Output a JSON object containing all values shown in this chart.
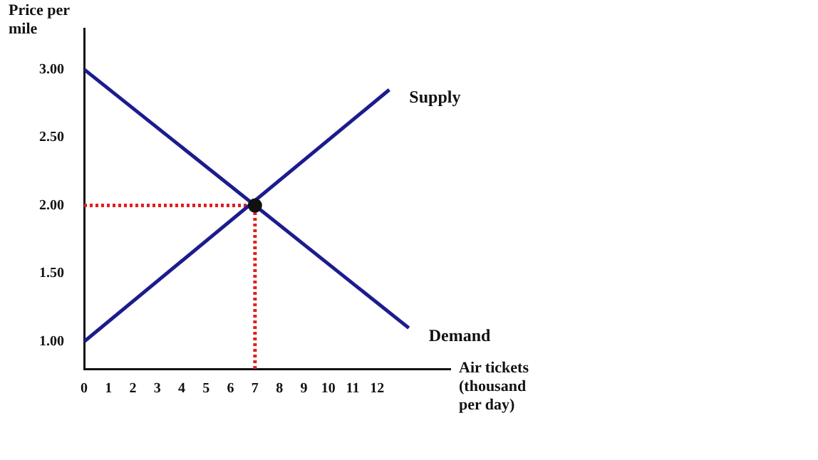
{
  "chart_data": {
    "type": "line",
    "xlabel": "Air tickets (thousand per day)",
    "ylabel": "Price per mile",
    "xlim": [
      0,
      15
    ],
    "xticks": [
      0,
      1,
      2,
      3,
      4,
      5,
      6,
      7,
      8,
      9,
      10,
      11,
      12
    ],
    "ylim": [
      0.8,
      3.3
    ],
    "yticks": [
      {
        "value": 1,
        "label": "1.00"
      },
      {
        "value": 1.5,
        "label": "1.50"
      },
      {
        "value": 2,
        "label": "2.00"
      },
      {
        "value": 2.5,
        "label": "2.50"
      },
      {
        "value": 3,
        "label": "3.00"
      }
    ],
    "grid": false,
    "legend": false,
    "series": [
      {
        "name": "Supply",
        "color": "#1c1c8e",
        "x": [
          0,
          12.5
        ],
        "values": [
          1.0,
          2.85
        ],
        "line_style": "solid"
      },
      {
        "name": "Demand",
        "color": "#1c1c8e",
        "x": [
          0,
          13.3
        ],
        "values": [
          3.0,
          1.1
        ],
        "line_style": "solid"
      },
      {
        "color": "#e02020",
        "x": [
          0,
          7
        ],
        "values": [
          2.0,
          2.0
        ],
        "line_style": "dotted"
      },
      {
        "color": "#e02020",
        "x": [
          7,
          7
        ],
        "values": [
          0.8,
          2.0
        ],
        "line_style": "dotted"
      },
      {
        "type": "scatter",
        "color": "#111111",
        "x": [
          7
        ],
        "values": [
          2.0
        ],
        "marker": "circle"
      }
    ]
  }
}
